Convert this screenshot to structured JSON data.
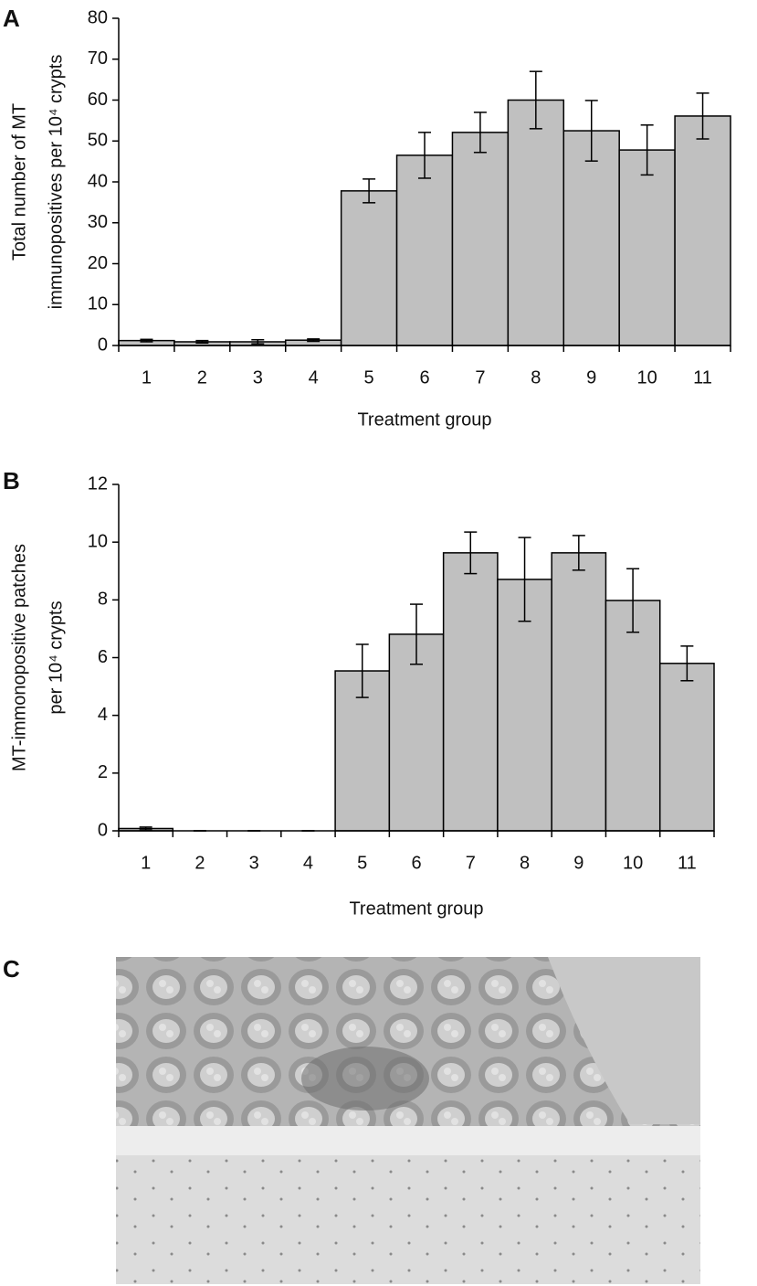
{
  "chart_data": [
    {
      "type": "bar",
      "panel": "A",
      "ylabel": [
        "Total number of MT",
        "immunopositives per 10⁴ crypts"
      ],
      "xlabel": "Treatment group",
      "categories": [
        "1",
        "2",
        "3",
        "4",
        "5",
        "6",
        "7",
        "8",
        "9",
        "10",
        "11"
      ],
      "values": [
        1.2,
        0.9,
        0.9,
        1.3,
        37.8,
        46.5,
        52.1,
        60,
        52.5,
        47.8,
        56.1
      ],
      "errors": [
        0.3,
        0.3,
        0.5,
        0.3,
        2.9,
        5.6,
        4.9,
        7,
        7.4,
        6.1,
        5.6
      ],
      "color": "#c0c0c0",
      "ylim": [
        0,
        80
      ],
      "yticks": [
        0,
        10,
        20,
        30,
        40,
        50,
        60,
        70,
        80
      ]
    },
    {
      "type": "bar",
      "panel": "B",
      "ylabel": [
        "MT-immonopositive patches",
        "per 10⁴ crypts"
      ],
      "xlabel": "Treatment group",
      "categories": [
        "1",
        "2",
        "3",
        "4",
        "5",
        "6",
        "7",
        "8",
        "9",
        "10",
        "11"
      ],
      "values": [
        0.08,
        0,
        0,
        0,
        5.54,
        6.81,
        9.63,
        8.71,
        9.63,
        7.98,
        5.8
      ],
      "errors": [
        0.05,
        0,
        0,
        0,
        0.92,
        1.04,
        0.72,
        1.45,
        0.6,
        1.1,
        0.6
      ],
      "color": "#c0c0c0",
      "ylim": [
        0,
        12
      ],
      "yticks": [
        0,
        2,
        4,
        6,
        8,
        10,
        12
      ]
    }
  ],
  "image_panel": "C"
}
